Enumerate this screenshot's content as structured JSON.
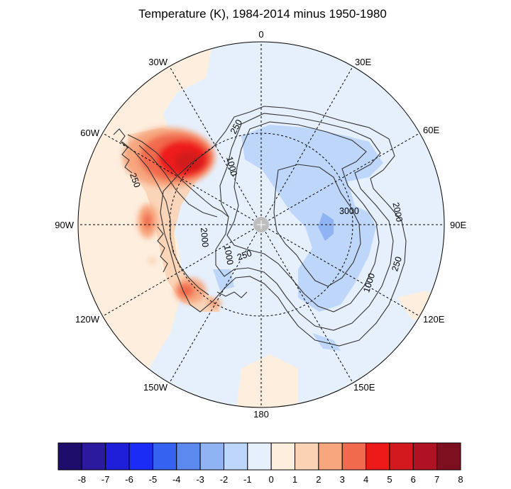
{
  "title": "Temperature (K), 1984-2014 minus 1950-1980",
  "longitude_labels": [
    "0",
    "30E",
    "60E",
    "90E",
    "120E",
    "150E",
    "180",
    "150W",
    "120W",
    "90W",
    "60W",
    "30W"
  ],
  "elevation_contour_labels": [
    "250",
    "1000",
    "3000",
    "2000",
    "250",
    "1000",
    "250",
    "1000",
    "2000",
    "250"
  ],
  "colorbar": {
    "ticks": [
      "-8",
      "-7",
      "-6",
      "-5",
      "-4",
      "-3",
      "-2",
      "-1",
      "0",
      "1",
      "2",
      "3",
      "4",
      "5",
      "6",
      "7",
      "8"
    ],
    "colors": [
      "#1f0d6b",
      "#2b1a9e",
      "#1f1ed8",
      "#1a2cf5",
      "#3562f0",
      "#5b89ee",
      "#8fb3f3",
      "#bdd6fa",
      "#e6f0fd",
      "#fdeede",
      "#fbd2b4",
      "#f7a67e",
      "#f26a4d",
      "#ee1a1a",
      "#d21a1e",
      "#b01223",
      "#7e0f1e"
    ]
  },
  "chart_data": {
    "type": "heatmap",
    "projection": "south polar stereographic",
    "title": "Temperature (K), 1984-2014 minus 1950-1980",
    "units": "K",
    "colorbar_range": [
      -8,
      8
    ],
    "colorbar_step": 1,
    "overlay": "elevation contours 250, 1000, 2000, 3000"
  }
}
